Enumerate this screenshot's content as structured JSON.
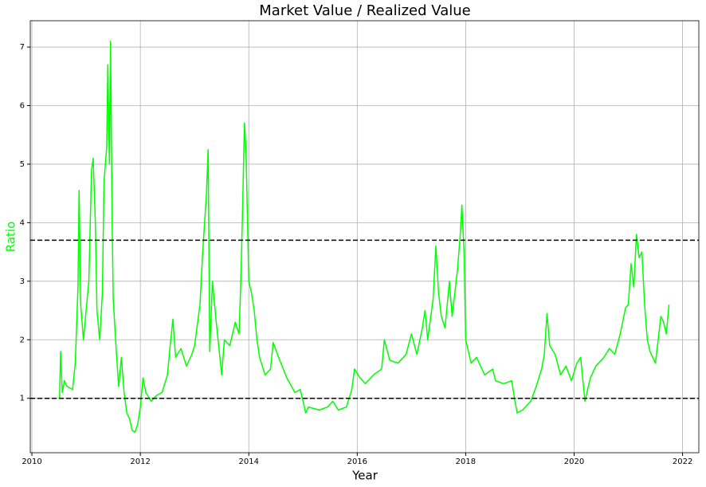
{
  "chart_data": {
    "type": "line",
    "title": "Market Value / Realized Value",
    "x_label": "Year",
    "y_label": "Ratio",
    "y_label_color": "#00ff00",
    "xlim": [
      2009.97,
      2022.3
    ],
    "ylim": [
      0.07,
      7.45
    ],
    "xticks": [
      2010,
      2012,
      2014,
      2016,
      2018,
      2020,
      2022
    ],
    "yticks": [
      1,
      2,
      3,
      4,
      5,
      6,
      7
    ],
    "grid": true,
    "hlines": [
      3.7,
      1
    ],
    "hline_color": "#000000",
    "x": [
      2010.51,
      2010.53,
      2010.56,
      2010.6,
      2010.65,
      2010.75,
      2010.8,
      2010.85,
      2010.87,
      2010.9,
      2010.95,
      2011.0,
      2011.05,
      2011.1,
      2011.13,
      2011.17,
      2011.2,
      2011.25,
      2011.3,
      2011.33,
      2011.38,
      2011.4,
      2011.43,
      2011.45,
      2011.48,
      2011.5,
      2011.55,
      2011.6,
      2011.65,
      2011.7,
      2011.75,
      2011.8,
      2011.85,
      2011.9,
      2011.95,
      2012.0,
      2012.05,
      2012.1,
      2012.2,
      2012.3,
      2012.4,
      2012.5,
      2012.55,
      2012.6,
      2012.65,
      2012.75,
      2012.85,
      2012.95,
      2013.0,
      2013.1,
      2013.15,
      2013.22,
      2013.25,
      2013.28,
      2013.33,
      2013.4,
      2013.5,
      2013.55,
      2013.65,
      2013.75,
      2013.82,
      2013.85,
      2013.88,
      2013.92,
      2013.95,
      2014.0,
      2014.05,
      2014.1,
      2014.15,
      2014.2,
      2014.3,
      2014.4,
      2014.45,
      2014.55,
      2014.7,
      2014.85,
      2014.95,
      2015.05,
      2015.1,
      2015.3,
      2015.45,
      2015.55,
      2015.65,
      2015.8,
      2015.85,
      2015.9,
      2015.95,
      2016.05,
      2016.15,
      2016.3,
      2016.45,
      2016.5,
      2016.6,
      2016.75,
      2016.9,
      2017.0,
      2017.1,
      2017.2,
      2017.25,
      2017.3,
      2017.4,
      2017.45,
      2017.5,
      2017.55,
      2017.62,
      2017.7,
      2017.75,
      2017.85,
      2017.9,
      2017.93,
      2017.97,
      2018.0,
      2018.05,
      2018.1,
      2018.2,
      2018.35,
      2018.5,
      2018.55,
      2018.7,
      2018.85,
      2018.9,
      2018.95,
      2019.05,
      2019.2,
      2019.3,
      2019.4,
      2019.45,
      2019.5,
      2019.55,
      2019.65,
      2019.75,
      2019.85,
      2019.95,
      2020.05,
      2020.12,
      2020.2,
      2020.3,
      2020.4,
      2020.55,
      2020.65,
      2020.75,
      2020.85,
      2020.95,
      2021.0,
      2021.05,
      2021.1,
      2021.15,
      2021.2,
      2021.25,
      2021.3,
      2021.35,
      2021.4,
      2021.5,
      2021.55,
      2021.6,
      2021.65,
      2021.7,
      2021.75
    ],
    "series": [
      {
        "color": "#00ff00",
        "values": [
          1.0,
          1.8,
          1.1,
          1.3,
          1.2,
          1.15,
          1.6,
          2.9,
          4.55,
          2.6,
          2.0,
          2.5,
          3.0,
          4.9,
          5.1,
          4.0,
          2.5,
          2.0,
          2.8,
          4.7,
          5.3,
          6.7,
          5.0,
          7.1,
          4.0,
          2.7,
          1.9,
          1.2,
          1.7,
          1.1,
          0.75,
          0.65,
          0.45,
          0.42,
          0.55,
          0.85,
          1.35,
          1.1,
          0.95,
          1.05,
          1.1,
          1.4,
          1.9,
          2.35,
          1.7,
          1.85,
          1.55,
          1.75,
          1.9,
          2.6,
          3.5,
          4.5,
          5.25,
          1.8,
          3.0,
          2.3,
          1.4,
          2.0,
          1.9,
          2.3,
          2.1,
          2.9,
          4.0,
          5.7,
          5.2,
          3.0,
          2.8,
          2.5,
          2.0,
          1.7,
          1.4,
          1.5,
          1.95,
          1.7,
          1.35,
          1.1,
          1.15,
          0.75,
          0.85,
          0.8,
          0.85,
          0.95,
          0.8,
          0.85,
          1.0,
          1.15,
          1.5,
          1.35,
          1.25,
          1.4,
          1.5,
          2.0,
          1.65,
          1.6,
          1.75,
          2.1,
          1.75,
          2.2,
          2.5,
          2.0,
          2.7,
          3.6,
          2.8,
          2.4,
          2.2,
          3.0,
          2.4,
          3.2,
          3.8,
          4.3,
          3.5,
          2.0,
          1.8,
          1.6,
          1.7,
          1.4,
          1.5,
          1.3,
          1.25,
          1.3,
          1.0,
          0.75,
          0.8,
          0.95,
          1.2,
          1.5,
          1.75,
          2.45,
          1.9,
          1.75,
          1.4,
          1.55,
          1.3,
          1.6,
          1.7,
          0.95,
          1.35,
          1.55,
          1.7,
          1.85,
          1.75,
          2.1,
          2.55,
          2.6,
          3.3,
          2.9,
          3.8,
          3.4,
          3.5,
          2.6,
          2.0,
          1.8,
          1.6,
          2.0,
          2.4,
          2.3,
          2.1,
          2.6
        ]
      }
    ]
  }
}
